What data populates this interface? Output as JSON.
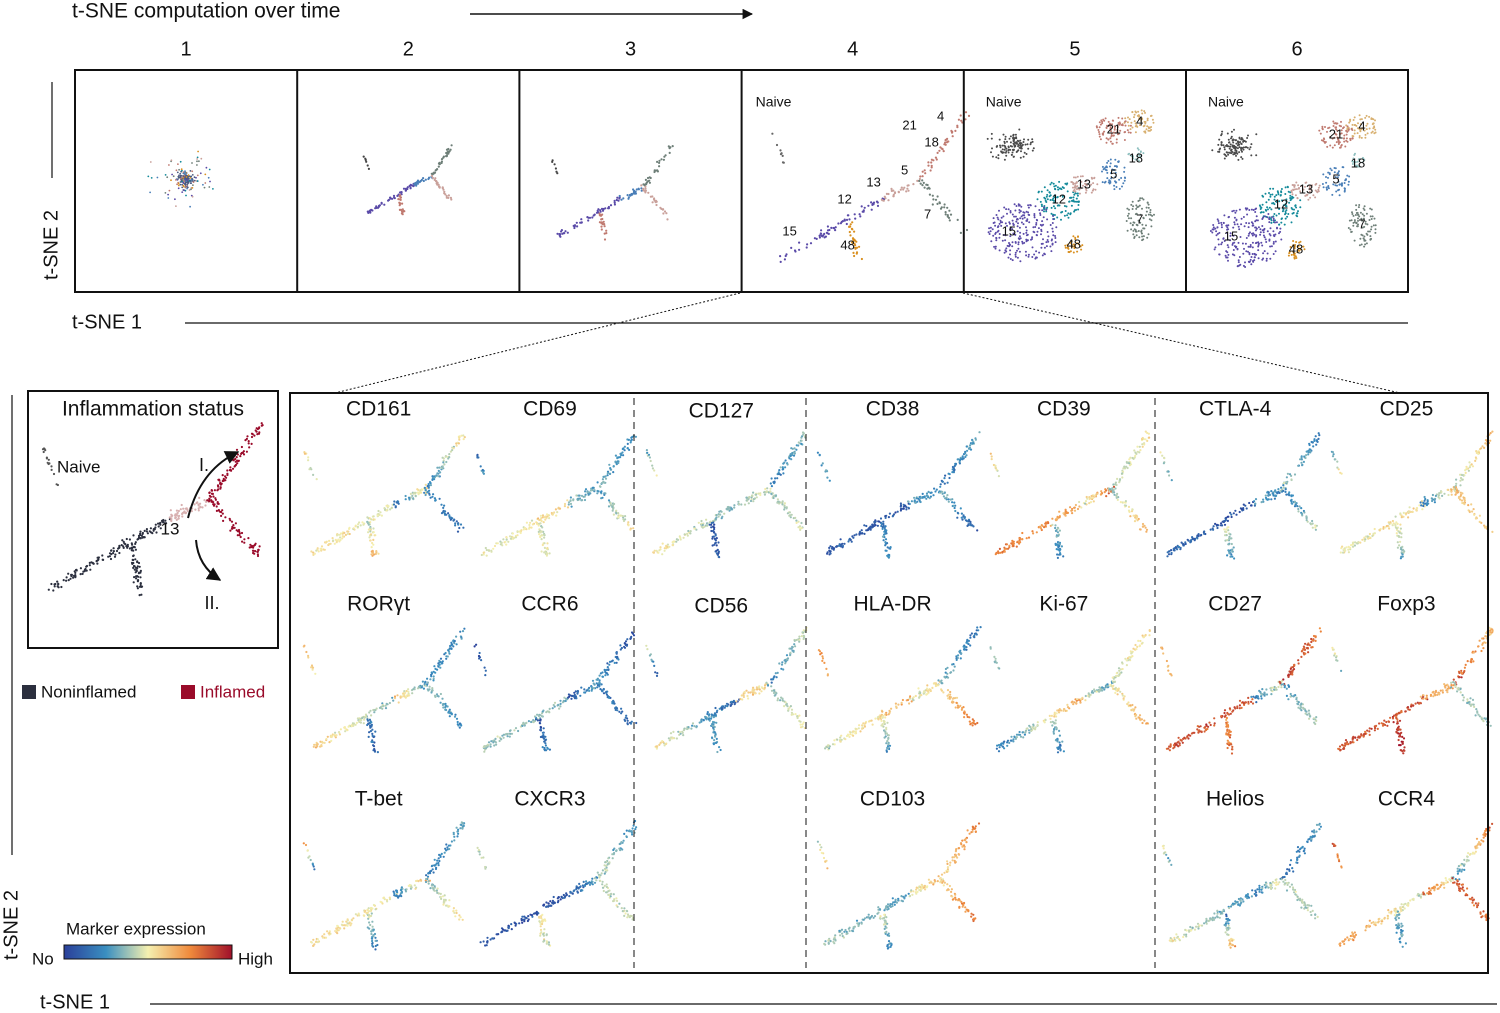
{
  "header": {
    "title": "t-SNE computation over time"
  },
  "top": {
    "steps": [
      "1",
      "2",
      "3",
      "4",
      "5",
      "6"
    ],
    "x_axis": "t-SNE 1",
    "y_axis": "t-SNE 2",
    "naive": "Naive",
    "clusters": [
      "4",
      "21",
      "18",
      "5",
      "13",
      "7",
      "12",
      "15",
      "48"
    ]
  },
  "inflammation": {
    "title": "Inflammation status",
    "naive": "Naive",
    "cluster": "13",
    "branch_1": "I.",
    "branch_2": "II."
  },
  "legend": [
    "Noninflamed",
    "Inflamed"
  ],
  "colorbar": {
    "title": "Marker expression",
    "low": "No",
    "high": "High"
  },
  "markers": [
    [
      "CD161",
      "CD69",
      "CD127",
      "CD38",
      "CD39",
      "CTLA-4",
      "CD25"
    ],
    [
      "RORγt",
      "CCR6",
      "CD56",
      "HLA-DR",
      "Ki-67",
      "CD27",
      "Foxp3"
    ],
    [
      "T-bet",
      "CXCR3",
      null,
      "CD103",
      null,
      "Helios",
      "CCR4"
    ]
  ],
  "bottom": {
    "x_axis": "t-SNE 1",
    "y_axis": "t-SNE 2"
  }
}
